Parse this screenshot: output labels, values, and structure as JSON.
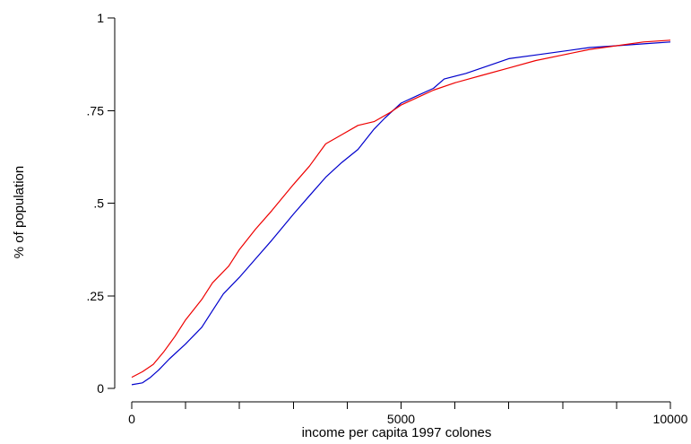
{
  "chart_data": {
    "type": "line",
    "xlabel": "income per capita 1997 colones",
    "ylabel": "% of population",
    "xlim": [
      0,
      10000
    ],
    "ylim": [
      0,
      1
    ],
    "x_ticks": [
      0,
      1000,
      2000,
      3000,
      4000,
      5000,
      6000,
      7000,
      8000,
      9000,
      10000
    ],
    "x_tick_labels": [
      {
        "value": 0,
        "label": "0"
      },
      {
        "value": 5000,
        "label": "5000"
      },
      {
        "value": 10000,
        "label": "10000"
      }
    ],
    "y_ticks": [
      {
        "value": 0,
        "label": "0"
      },
      {
        "value": 0.25,
        "label": ".25"
      },
      {
        "value": 0.5,
        "label": ".5"
      },
      {
        "value": 0.75,
        "label": ".75"
      },
      {
        "value": 1,
        "label": "1"
      }
    ],
    "grid": false,
    "series": [
      {
        "color": "#0000cc",
        "x": [
          0,
          200,
          350,
          500,
          700,
          1000,
          1300,
          1500,
          1700,
          2000,
          2300,
          2600,
          3000,
          3300,
          3600,
          3900,
          4200,
          4500,
          4700,
          5000,
          5300,
          5600,
          5800,
          6200,
          6600,
          7000,
          7500,
          8000,
          8500,
          9000,
          9500,
          10000
        ],
        "y": [
          0.01,
          0.015,
          0.03,
          0.05,
          0.08,
          0.12,
          0.165,
          0.21,
          0.255,
          0.3,
          0.35,
          0.4,
          0.47,
          0.52,
          0.57,
          0.61,
          0.645,
          0.7,
          0.73,
          0.77,
          0.79,
          0.81,
          0.835,
          0.85,
          0.87,
          0.89,
          0.9,
          0.91,
          0.92,
          0.925,
          0.93,
          0.935
        ]
      },
      {
        "color": "#ee0000",
        "x": [
          0,
          200,
          400,
          600,
          800,
          1000,
          1300,
          1500,
          1800,
          2000,
          2300,
          2600,
          3000,
          3300,
          3600,
          3900,
          4200,
          4500,
          4800,
          5000,
          5300,
          5600,
          6000,
          6500,
          7000,
          7500,
          8000,
          8500,
          9000,
          9500,
          10000
        ],
        "y": [
          0.03,
          0.045,
          0.065,
          0.1,
          0.14,
          0.185,
          0.24,
          0.285,
          0.33,
          0.375,
          0.43,
          0.48,
          0.55,
          0.6,
          0.66,
          0.685,
          0.71,
          0.72,
          0.745,
          0.765,
          0.785,
          0.805,
          0.825,
          0.845,
          0.865,
          0.885,
          0.9,
          0.915,
          0.925,
          0.935,
          0.94
        ]
      }
    ]
  }
}
